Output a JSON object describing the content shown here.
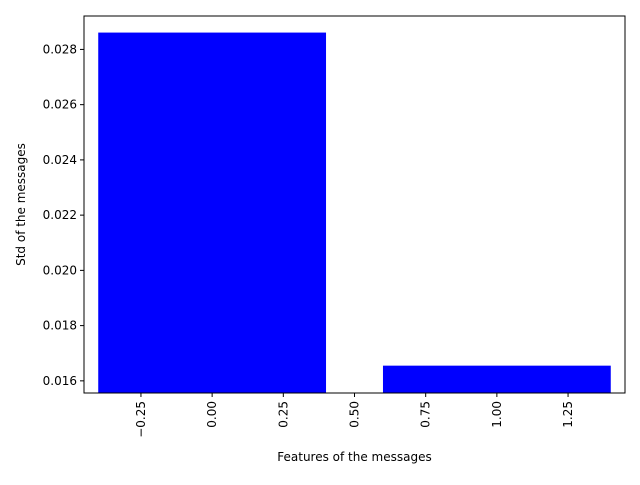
{
  "chart_data": {
    "type": "bar",
    "title": "",
    "xlabel": "Features of the messages",
    "ylabel": "Std of the messages",
    "x": [
      0,
      1
    ],
    "values": [
      0.02861,
      0.01655
    ],
    "bar_width": 0.8,
    "bar_color": "#0000ff",
    "xlim": [
      -0.45,
      1.45
    ],
    "ylim": [
      0.01556,
      0.02921
    ],
    "xticks": [
      -0.25,
      0.0,
      0.25,
      0.5,
      0.75,
      1.0,
      1.25
    ],
    "xtick_labels": [
      "−0.25",
      "0.00",
      "0.25",
      "0.50",
      "0.75",
      "1.00",
      "1.25"
    ],
    "yticks": [
      0.016,
      0.018,
      0.02,
      0.022,
      0.024,
      0.026,
      0.028
    ],
    "ytick_labels": [
      "0.016",
      "0.018",
      "0.020",
      "0.022",
      "0.024",
      "0.026",
      "0.028"
    ],
    "grid": false,
    "legend": "none"
  }
}
